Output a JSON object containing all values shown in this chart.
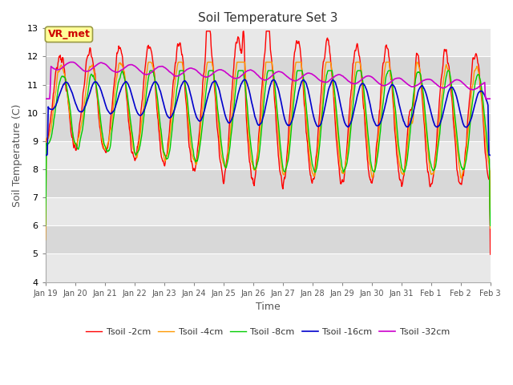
{
  "title": "Soil Temperature Set 3",
  "xlabel": "Time",
  "ylabel": "Soil Temperature (C)",
  "ylim": [
    4.0,
    13.0
  ],
  "yticks": [
    4.0,
    5.0,
    6.0,
    7.0,
    8.0,
    9.0,
    10.0,
    11.0,
    12.0,
    13.0
  ],
  "xtick_labels": [
    "Jan 19",
    "Jan 20",
    "Jan 21",
    "Jan 22",
    "Jan 23",
    "Jan 24",
    "Jan 25",
    "Jan 26",
    "Jan 27",
    "Jan 28",
    "Jan 29",
    "Jan 30",
    "Jan 31",
    "Feb 1",
    "Feb 2",
    "Feb 3"
  ],
  "legend_labels": [
    "Tsoil -2cm",
    "Tsoil -4cm",
    "Tsoil -8cm",
    "Tsoil -16cm",
    "Tsoil -32cm"
  ],
  "colors": [
    "#ff0000",
    "#ff9900",
    "#00cc00",
    "#0000cc",
    "#cc00cc"
  ],
  "annotation_text": "VR_met",
  "annotation_color": "#cc0000",
  "annotation_bg": "#ffff99",
  "band_colors": [
    "#e8e8e8",
    "#d8d8d8"
  ],
  "grid_color": "#ffffff",
  "n_points": 960
}
